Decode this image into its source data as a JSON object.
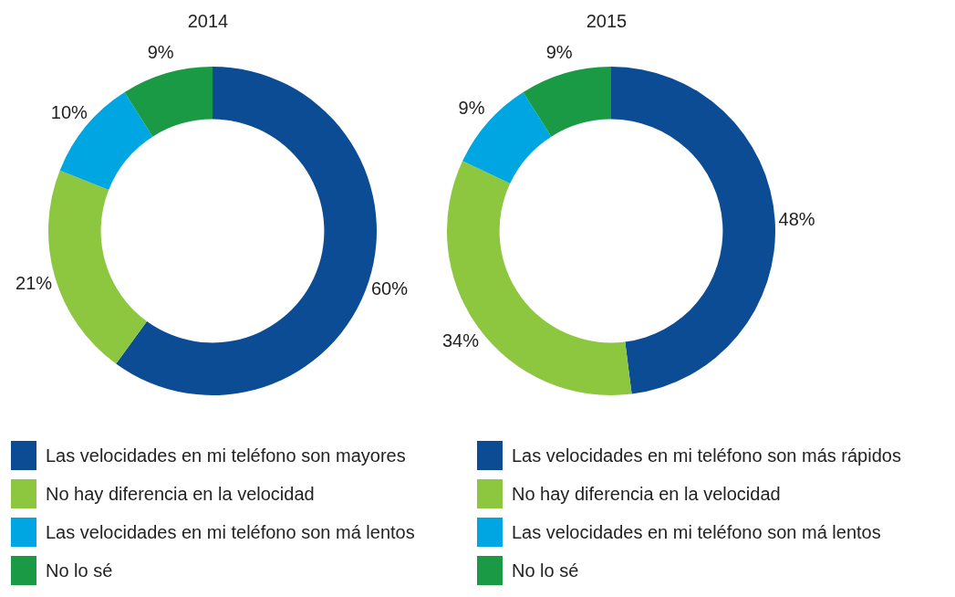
{
  "chart_data": [
    {
      "type": "donut",
      "title": "2014",
      "categories": [
        "Las velocidades en mi teléfono son mayores",
        "No hay diferencia en la velocidad",
        "Las velocidades en mi teléfono son má lentos",
        "No lo sé"
      ],
      "values": [
        60,
        21,
        10,
        9
      ],
      "value_labels": [
        "60%",
        "21%",
        "10%",
        "9%"
      ],
      "colors": [
        "#0b4c94",
        "#8dc63f",
        "#00a6e2",
        "#1b9a46"
      ],
      "legend": "bottom"
    },
    {
      "type": "donut",
      "title": "2015",
      "categories": [
        "Las velocidades en mi teléfono son más rápidos",
        "No hay diferencia en la velocidad",
        "Las velocidades en mi teléfono son má lentos",
        "No lo sé"
      ],
      "values": [
        48,
        34,
        9,
        9
      ],
      "value_labels": [
        "48%",
        "34%",
        "9%",
        "9%"
      ],
      "colors": [
        "#0b4c94",
        "#8dc63f",
        "#00a6e2",
        "#1b9a46"
      ],
      "legend": "bottom"
    }
  ]
}
